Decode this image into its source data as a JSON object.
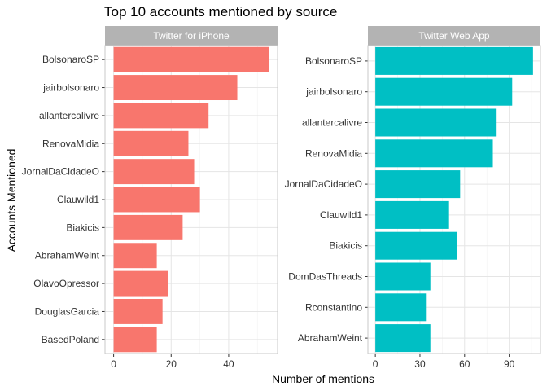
{
  "chart_data": {
    "type": "bar",
    "orientation": "horizontal",
    "title": "Top 10 accounts mentioned by source",
    "xlabel": "Number of mentions",
    "ylabel": "Accounts Mentioned",
    "grid": true,
    "legend": "none",
    "panels": [
      {
        "name": "Twitter for iPhone",
        "color": "#F8766D",
        "xlim": [
          -3,
          57
        ],
        "xticks": [
          0,
          20,
          40
        ],
        "categories": [
          "BolsonaroSP",
          "jairbolsonaro",
          "allantercalivre",
          "RenovaMidia",
          "JornalDaCidadeO",
          "Clauwild1",
          "Biakicis",
          "AbrahamWeint",
          "OlavoOpressor",
          "DouglasGarcia",
          "BasedPoland"
        ],
        "values": [
          54,
          43,
          33,
          26,
          28,
          30,
          24,
          15,
          19,
          17,
          15
        ]
      },
      {
        "name": "Twitter Web App",
        "color": "#00BFC4",
        "xlim": [
          -5,
          111
        ],
        "xticks": [
          0,
          30,
          60,
          90
        ],
        "categories": [
          "BolsonaroSP",
          "jairbolsonaro",
          "allantercalivre",
          "RenovaMidia",
          "JornalDaCidadeO",
          "Clauwild1",
          "Biakicis",
          "DomDasThreads",
          "Rconstantino",
          "AbrahamWeint"
        ],
        "values": [
          106,
          92,
          81,
          79,
          57,
          49,
          55,
          37,
          34,
          37
        ]
      }
    ]
  }
}
